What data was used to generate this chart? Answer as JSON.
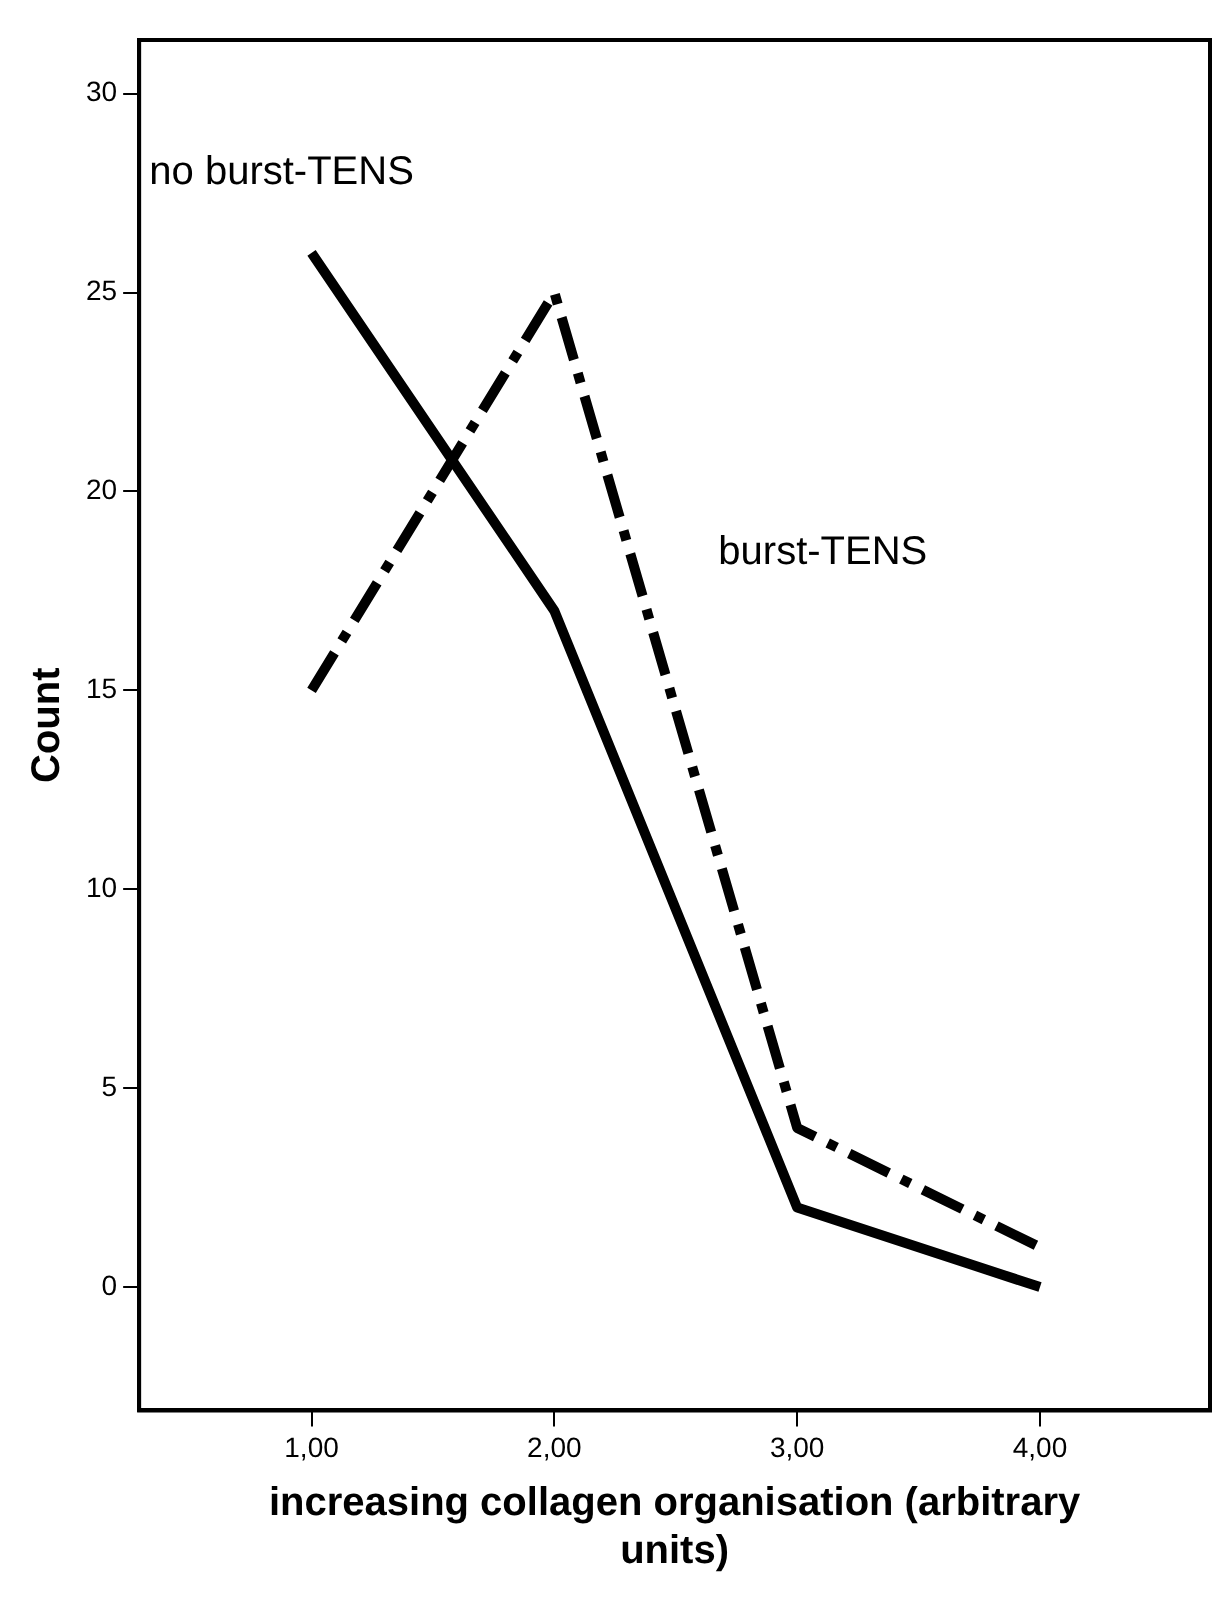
{
  "chart_data": {
    "type": "line",
    "xlabel": "increasing collagen organisation (arbitrary units)",
    "ylabel": "Count",
    "x": [
      1,
      2,
      3,
      4
    ],
    "series": [
      {
        "name": "no burst-TENS",
        "color": "#000000",
        "values": [
          26,
          17,
          2,
          0
        ],
        "line_style": "solid"
      },
      {
        "name": "burst-TENS",
        "color": "#000000",
        "values": [
          15,
          25,
          4,
          1
        ],
        "line_style": "dashed"
      }
    ],
    "xlim": [
      0.29,
      4.7
    ],
    "xticks": [
      {
        "value": 1,
        "label": "1,00"
      },
      {
        "value": 2,
        "label": "2,00"
      },
      {
        "value": 3,
        "label": "3,00"
      },
      {
        "value": 4,
        "label": "4,00"
      }
    ],
    "ylim": [
      -3.1,
      31.35
    ],
    "yticks": [
      0,
      5,
      10,
      15,
      20,
      25,
      30
    ],
    "grid": false,
    "legend": false,
    "marker": "none"
  }
}
